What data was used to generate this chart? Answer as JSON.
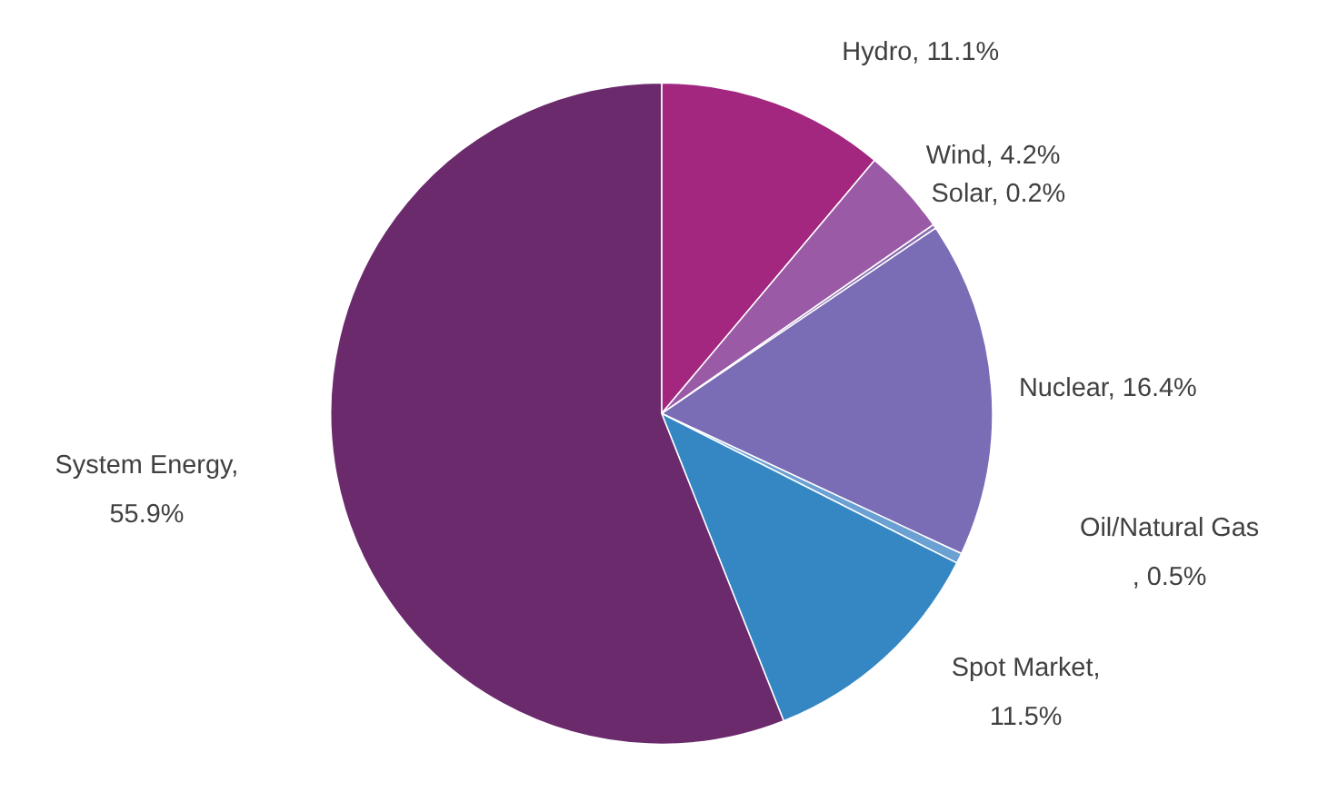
{
  "chart_data": {
    "type": "pie",
    "categories": [
      "Hydro",
      "Wind",
      "Solar",
      "Nuclear",
      "Oil/Natural Gas",
      "Spot Market",
      "System Energy"
    ],
    "values": [
      11.1,
      4.2,
      0.2,
      16.4,
      0.5,
      11.5,
      55.9
    ],
    "value_labels": [
      ", 11.1%",
      ", 4.2%",
      ", 0.2%",
      ", 16.4%",
      "\n, 0.5%",
      ",\n11.5%",
      ",\n55.9%"
    ],
    "colors": [
      "#a3267f",
      "#9a5aa6",
      "#8c6fb0",
      "#7a6db5",
      "#6aa0d2",
      "#3587c3",
      "#6a2a6c"
    ]
  }
}
